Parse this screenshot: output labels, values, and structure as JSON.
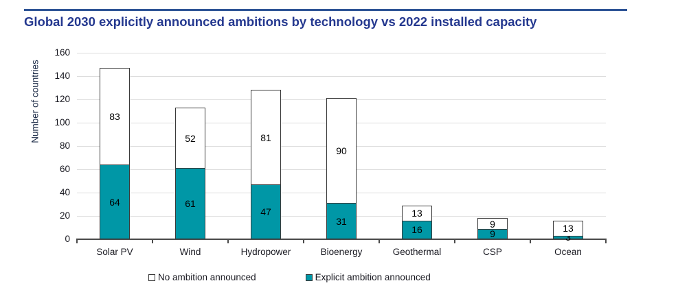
{
  "header": {
    "title": "Global 2030 explicitly announced ambitions by technology vs 2022 installed capacity",
    "title_color": "#24388f",
    "rule_color": "#2e5496"
  },
  "chart_data": {
    "type": "bar",
    "stacked": true,
    "title": "Global 2030 explicitly announced ambitions by technology vs 2022 installed capacity",
    "categories": [
      "Solar PV",
      "Wind",
      "Hydropower",
      "Bioenergy",
      "Geothermal",
      "CSP",
      "Ocean"
    ],
    "series": [
      {
        "name": "Explicit ambition announced",
        "color": "#0097a6",
        "values": [
          64,
          61,
          47,
          31,
          16,
          9,
          3
        ]
      },
      {
        "name": "No ambition announced",
        "color": "#ffffff",
        "values": [
          83,
          52,
          81,
          90,
          13,
          9,
          13
        ]
      }
    ],
    "xlabel": "",
    "ylabel": "Number of countries",
    "ylim": [
      0,
      160
    ],
    "yticks": [
      0,
      20,
      40,
      60,
      80,
      100,
      120,
      140,
      160
    ],
    "grid": true,
    "bar_border_color": "#3a3a3a",
    "value_label_color": "#000000",
    "legend_position": "bottom"
  },
  "legend": {
    "items": [
      {
        "label": "No ambition announced",
        "color": "#ffffff"
      },
      {
        "label": "Explicit ambition announced",
        "color": "#0097a6"
      }
    ]
  }
}
